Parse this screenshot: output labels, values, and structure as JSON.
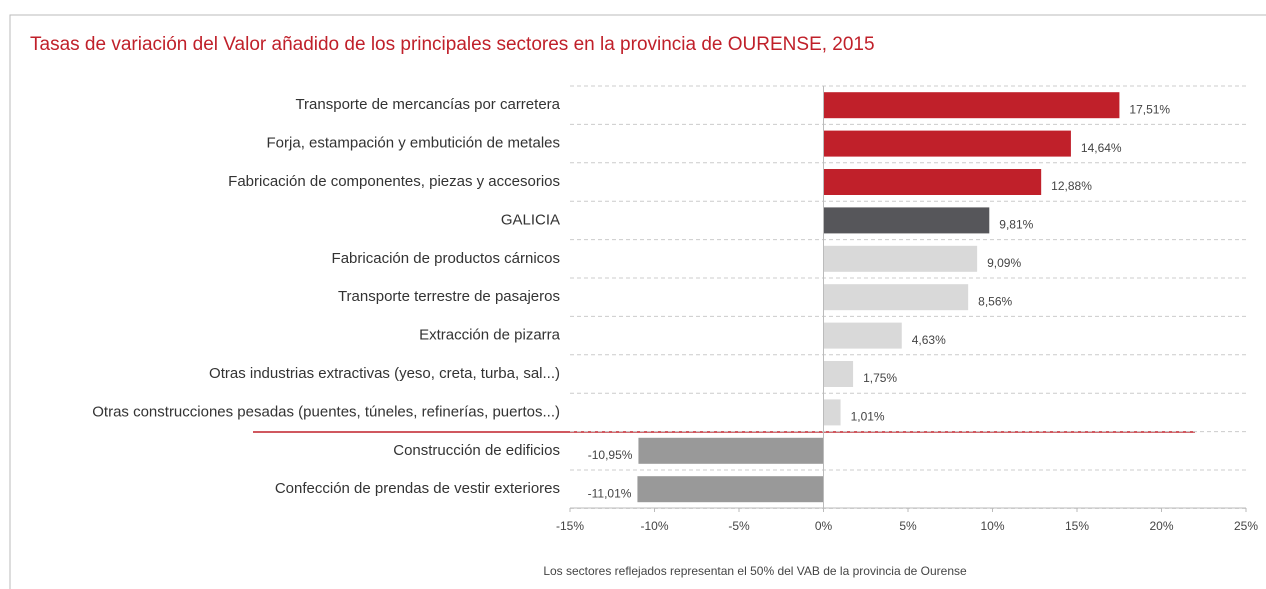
{
  "chart_data": {
    "type": "barh",
    "title": "Tasas de variación  del Valor añadido de los principales sectores en la provincia  de OURENSE, 2015",
    "categories": [
      "Transporte de mercancías por carretera",
      "Forja, estampación y embutición de metales",
      "Fabricación de componentes, piezas y accesorios",
      "GALICIA",
      "Fabricación de productos cárnicos",
      "Transporte terrestre de pasajeros",
      "Extracción de pizarra",
      "Otras industrias extractivas (yeso, creta, turba, sal...)",
      "Otras construcciones pesadas (puentes, túneles, refinerías, puertos...)",
      "Construcción de edificios",
      "Confección de prendas de vestir exteriores"
    ],
    "values": [
      17.51,
      14.64,
      12.88,
      9.81,
      9.09,
      8.56,
      4.63,
      1.75,
      1.01,
      -10.95,
      -11.01
    ],
    "value_labels": [
      "17,51%",
      "14,64%",
      "12,88%",
      "9,81%",
      "9,09%",
      "8,56%",
      "4,63%",
      "1,75%",
      "1,01%",
      "-10,95%",
      "-11,01%"
    ],
    "colors": [
      "#c0202a",
      "#c0202a",
      "#c0202a",
      "#56565a",
      "#d9d9d9",
      "#d9d9d9",
      "#d9d9d9",
      "#d9d9d9",
      "#d9d9d9",
      "#999999",
      "#999999"
    ],
    "xlim": [
      -15,
      25
    ],
    "xticks": [
      {
        "value": -15,
        "label": "-15%"
      },
      {
        "value": -10,
        "label": "-10%"
      },
      {
        "value": -5,
        "label": "-5%"
      },
      {
        "value": 0,
        "label": "0%"
      },
      {
        "value": 5,
        "label": "5%"
      },
      {
        "value": 10,
        "label": "10%"
      },
      {
        "value": 15,
        "label": "15%"
      },
      {
        "value": 20,
        "label": "20%"
      },
      {
        "value": 25,
        "label": "25%"
      }
    ],
    "footnote": "Los sectores reflejados representan el 50% del VAB de la provincia  de Ourense"
  }
}
